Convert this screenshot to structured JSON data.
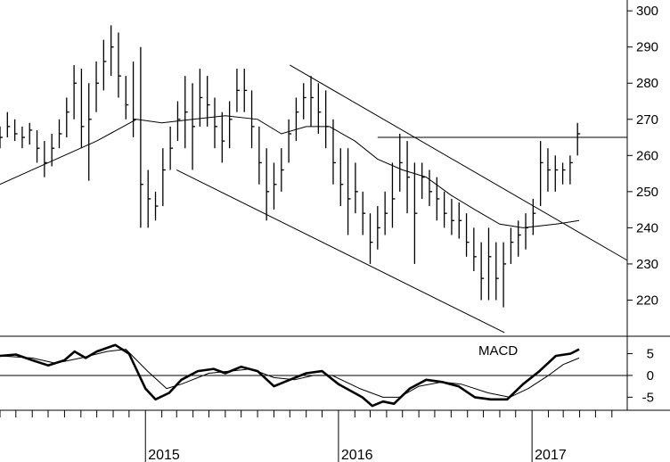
{
  "chart_data": [
    {
      "type": "ohlc-bar",
      "panel": "price",
      "ylim": [
        210,
        303
      ],
      "yticks": [
        220,
        230,
        240,
        250,
        260,
        270,
        280,
        290,
        300
      ],
      "x": {
        "start": "2014-04-01",
        "end": "2017-06-30"
      },
      "bars": [
        [
          "2014-04-01",
          268,
          262,
          265
        ],
        [
          "2014-04-15",
          272,
          265,
          268
        ],
        [
          "2014-04-29",
          270,
          264,
          266
        ],
        [
          "2014-05-13",
          268,
          262,
          265
        ],
        [
          "2014-05-27",
          269,
          263,
          267
        ],
        [
          "2014-06-10",
          267,
          258,
          262
        ],
        [
          "2014-06-24",
          264,
          254,
          258
        ],
        [
          "2014-07-08",
          266,
          257,
          262
        ],
        [
          "2014-07-22",
          270,
          262,
          266
        ],
        [
          "2014-08-05",
          276,
          265,
          272
        ],
        [
          "2014-08-19",
          285,
          270,
          280
        ],
        [
          "2014-09-02",
          284,
          262,
          268
        ],
        [
          "2014-09-16",
          280,
          253,
          270
        ],
        [
          "2014-09-30",
          286,
          272,
          280
        ],
        [
          "2014-10-14",
          292,
          278,
          286
        ],
        [
          "2014-10-28",
          296,
          282,
          290
        ],
        [
          "2014-11-11",
          294,
          276,
          282
        ],
        [
          "2014-11-25",
          282,
          270,
          274
        ],
        [
          "2014-12-09",
          286,
          265,
          270
        ],
        [
          "2014-12-23",
          290,
          240,
          252
        ],
        [
          "2015-01-06",
          256,
          240,
          248
        ],
        [
          "2015-01-20",
          250,
          242,
          246
        ],
        [
          "2015-02-03",
          262,
          246,
          256
        ],
        [
          "2015-02-17",
          268,
          256,
          262
        ],
        [
          "2015-03-03",
          275,
          264,
          270
        ],
        [
          "2015-03-17",
          282,
          262,
          272
        ],
        [
          "2015-03-31",
          280,
          256,
          268
        ],
        [
          "2015-04-14",
          284,
          268,
          276
        ],
        [
          "2015-04-28",
          282,
          268,
          274
        ],
        [
          "2015-05-12",
          276,
          262,
          268
        ],
        [
          "2015-05-26",
          272,
          258,
          264
        ],
        [
          "2015-06-09",
          275,
          262,
          270
        ],
        [
          "2015-06-23",
          284,
          272,
          278
        ],
        [
          "2015-07-07",
          284,
          272,
          278
        ],
        [
          "2015-07-21",
          278,
          262,
          268
        ],
        [
          "2015-08-04",
          268,
          252,
          258
        ],
        [
          "2015-08-18",
          262,
          242,
          250
        ],
        [
          "2015-09-01",
          258,
          245,
          252
        ],
        [
          "2015-09-15",
          262,
          250,
          256
        ],
        [
          "2015-09-29",
          270,
          258,
          266
        ],
        [
          "2015-10-13",
          276,
          264,
          272
        ],
        [
          "2015-10-27",
          280,
          270,
          276
        ],
        [
          "2015-11-10",
          282,
          268,
          276
        ],
        [
          "2015-11-24",
          280,
          266,
          272
        ],
        [
          "2015-12-08",
          278,
          262,
          268
        ],
        [
          "2015-12-22",
          270,
          252,
          258
        ],
        [
          "2016-01-05",
          262,
          246,
          252
        ],
        [
          "2016-01-19",
          262,
          238,
          248
        ],
        [
          "2016-02-02",
          258,
          244,
          250
        ],
        [
          "2016-02-16",
          250,
          238,
          244
        ],
        [
          "2016-03-01",
          244,
          230,
          236
        ],
        [
          "2016-03-15",
          246,
          234,
          240
        ],
        [
          "2016-03-29",
          250,
          238,
          244
        ],
        [
          "2016-04-12",
          258,
          240,
          248
        ],
        [
          "2016-04-26",
          266,
          250,
          258
        ],
        [
          "2016-05-10",
          264,
          244,
          254
        ],
        [
          "2016-05-24",
          258,
          230,
          244
        ],
        [
          "2016-06-07",
          258,
          248,
          254
        ],
        [
          "2016-06-21",
          256,
          246,
          250
        ],
        [
          "2016-07-05",
          254,
          242,
          248
        ],
        [
          "2016-07-19",
          250,
          240,
          244
        ],
        [
          "2016-08-02",
          248,
          238,
          242
        ],
        [
          "2016-08-16",
          247,
          237,
          242
        ],
        [
          "2016-08-30",
          244,
          232,
          236
        ],
        [
          "2016-09-13",
          240,
          228,
          232
        ],
        [
          "2016-09-27",
          236,
          220,
          226
        ],
        [
          "2016-10-11",
          240,
          220,
          232
        ],
        [
          "2016-10-25",
          236,
          220,
          226
        ],
        [
          "2016-11-08",
          236,
          218,
          230
        ],
        [
          "2016-11-22",
          240,
          230,
          236
        ],
        [
          "2016-12-06",
          242,
          232,
          238
        ],
        [
          "2016-12-20",
          244,
          234,
          240
        ],
        [
          "2017-01-03",
          248,
          238,
          244
        ],
        [
          "2017-01-17",
          264,
          246,
          258
        ],
        [
          "2017-01-31",
          262,
          250,
          256
        ],
        [
          "2017-02-14",
          260,
          250,
          256
        ],
        [
          "2017-02-28",
          258,
          252,
          256
        ],
        [
          "2017-03-14",
          260,
          252,
          258
        ],
        [
          "2017-03-28",
          269,
          260,
          266
        ]
      ],
      "moving_average": [
        [
          "2014-04-01",
          252
        ],
        [
          "2014-07-01",
          258
        ],
        [
          "2014-10-01",
          264
        ],
        [
          "2014-12-15",
          270
        ],
        [
          "2015-02-01",
          269
        ],
        [
          "2015-04-01",
          270
        ],
        [
          "2015-06-01",
          271
        ],
        [
          "2015-08-01",
          270
        ],
        [
          "2015-09-15",
          266
        ],
        [
          "2015-11-01",
          268
        ],
        [
          "2015-12-15",
          268
        ],
        [
          "2016-02-01",
          264
        ],
        [
          "2016-03-15",
          259
        ],
        [
          "2016-05-01",
          256
        ],
        [
          "2016-06-15",
          254
        ],
        [
          "2016-08-01",
          249
        ],
        [
          "2016-09-15",
          245
        ],
        [
          "2016-11-01",
          241
        ],
        [
          "2016-12-15",
          240
        ],
        [
          "2017-02-15",
          241
        ],
        [
          "2017-03-31",
          242
        ]
      ],
      "trendlines": [
        {
          "name": "channel-upper",
          "points": [
            [
              "2015-10-01",
              285
            ],
            [
              "2017-06-30",
              231
            ]
          ]
        },
        {
          "name": "channel-lower",
          "points": [
            [
              "2015-03-01",
              256
            ],
            [
              "2016-11-10",
              211
            ]
          ]
        },
        {
          "name": "resistance",
          "points": [
            [
              "2016-03-15",
              265
            ],
            [
              "2017-06-30",
              265
            ]
          ]
        }
      ]
    },
    {
      "type": "line",
      "panel": "indicator",
      "label": "MACD",
      "ylim": [
        -8,
        9
      ],
      "yticks": [
        5,
        0,
        -5
      ],
      "zero_line": true,
      "series": [
        {
          "name": "macd",
          "style": "thick",
          "points": [
            [
              "2014-04-01",
              4.5
            ],
            [
              "2014-05-01",
              4.8
            ],
            [
              "2014-06-01",
              3.5
            ],
            [
              "2014-07-01",
              2.3
            ],
            [
              "2014-08-01",
              3.5
            ],
            [
              "2014-08-20",
              5.5
            ],
            [
              "2014-09-10",
              4.0
            ],
            [
              "2014-10-01",
              5.5
            ],
            [
              "2014-11-05",
              7.0
            ],
            [
              "2014-12-01",
              5.0
            ],
            [
              "2015-01-01",
              -3.0
            ],
            [
              "2015-01-20",
              -5.5
            ],
            [
              "2015-02-15",
              -4.0
            ],
            [
              "2015-03-10",
              -1.0
            ],
            [
              "2015-04-10",
              1.0
            ],
            [
              "2015-05-10",
              1.5
            ],
            [
              "2015-06-01",
              0.5
            ],
            [
              "2015-07-01",
              2.0
            ],
            [
              "2015-08-01",
              1.0
            ],
            [
              "2015-09-01",
              -2.5
            ],
            [
              "2015-10-01",
              -1.0
            ],
            [
              "2015-11-01",
              0.5
            ],
            [
              "2015-12-01",
              1.0
            ],
            [
              "2016-01-01",
              -2.0
            ],
            [
              "2016-02-15",
              -5.0
            ],
            [
              "2016-03-05",
              -7.0
            ],
            [
              "2016-03-25",
              -6.0
            ],
            [
              "2016-04-15",
              -6.5
            ],
            [
              "2016-05-15",
              -3.0
            ],
            [
              "2016-06-15",
              -1.0
            ],
            [
              "2016-07-15",
              -1.5
            ],
            [
              "2016-08-15",
              -2.5
            ],
            [
              "2016-09-15",
              -5.0
            ],
            [
              "2016-10-15",
              -5.5
            ],
            [
              "2016-11-15",
              -5.5
            ],
            [
              "2016-12-15",
              -2.0
            ],
            [
              "2017-01-15",
              1.0
            ],
            [
              "2017-02-15",
              4.5
            ],
            [
              "2017-03-15",
              5.0
            ],
            [
              "2017-03-31",
              6.0
            ]
          ]
        },
        {
          "name": "signal",
          "style": "thin",
          "points": [
            [
              "2014-04-01",
              4.5
            ],
            [
              "2014-06-01",
              4.0
            ],
            [
              "2014-07-15",
              2.8
            ],
            [
              "2014-09-01",
              4.0
            ],
            [
              "2014-10-20",
              5.5
            ],
            [
              "2014-11-25",
              6.0
            ],
            [
              "2015-01-05",
              1.0
            ],
            [
              "2015-02-10",
              -3.0
            ],
            [
              "2015-03-10",
              -2.0
            ],
            [
              "2015-05-01",
              0.5
            ],
            [
              "2015-06-10",
              1.0
            ],
            [
              "2015-07-20",
              1.5
            ],
            [
              "2015-09-01",
              -0.5
            ],
            [
              "2015-10-10",
              -1.0
            ],
            [
              "2015-11-15",
              0.0
            ],
            [
              "2015-12-20",
              0.0
            ],
            [
              "2016-02-10",
              -3.0
            ],
            [
              "2016-03-25",
              -5.0
            ],
            [
              "2016-04-25",
              -5.0
            ],
            [
              "2016-06-01",
              -2.5
            ],
            [
              "2016-07-15",
              -1.5
            ],
            [
              "2016-08-20",
              -2.0
            ],
            [
              "2016-10-10",
              -4.0
            ],
            [
              "2016-11-20",
              -5.0
            ],
            [
              "2016-12-25",
              -3.0
            ],
            [
              "2017-02-01",
              0.0
            ],
            [
              "2017-03-01",
              2.5
            ],
            [
              "2017-03-31",
              4.0
            ]
          ]
        }
      ]
    }
  ],
  "x_axis": {
    "year_labels": [
      {
        "date": "2015-01-01",
        "label": "2015"
      },
      {
        "date": "2016-01-01",
        "label": "2016"
      },
      {
        "date": "2017-01-01",
        "label": "2017"
      }
    ],
    "tick_interval": "month"
  },
  "colors": {
    "ink": "#000000",
    "background": "#ffffff"
  }
}
